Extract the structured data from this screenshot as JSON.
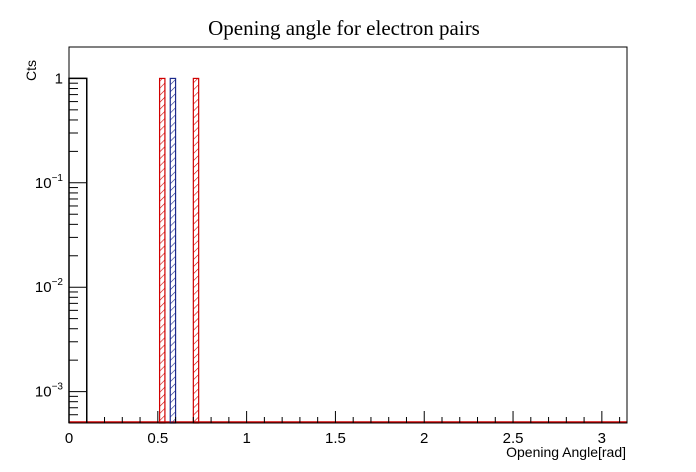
{
  "chart_data": {
    "type": "bar",
    "title": "Opening angle for electron pairs",
    "xlabel": "Opening Angle[rad]",
    "ylabel": "Cts",
    "xlim": [
      0,
      3.14159
    ],
    "ylim": [
      0.0005,
      2
    ],
    "y_scale": "log",
    "grid": false,
    "x_ticks": [
      {
        "value": 0,
        "label": "0"
      },
      {
        "value": 0.5,
        "label": "0.5"
      },
      {
        "value": 1,
        "label": "1"
      },
      {
        "value": 1.5,
        "label": "1.5"
      },
      {
        "value": 2,
        "label": "2"
      },
      {
        "value": 2.5,
        "label": "2.5"
      },
      {
        "value": 3,
        "label": "3"
      }
    ],
    "y_ticks": [
      {
        "value": 1,
        "base": "1",
        "exp": ""
      },
      {
        "value": 0.1,
        "base": "10",
        "exp": "−1"
      },
      {
        "value": 0.01,
        "base": "10",
        "exp": "−2"
      },
      {
        "value": 0.001,
        "base": "10",
        "exp": "−3"
      }
    ],
    "series": [
      {
        "color": "#000000",
        "style": "outline",
        "bars": [
          {
            "x0": 0.0,
            "x1": 0.1,
            "value": 1
          }
        ]
      },
      {
        "color": "#d00000",
        "style": "hatched",
        "bars": [
          {
            "x0": 0.51,
            "x1": 0.54,
            "value": 1
          },
          {
            "x0": 0.7,
            "x1": 0.73,
            "value": 1
          }
        ]
      },
      {
        "color": "#1c2a8c",
        "style": "hatched",
        "bars": [
          {
            "x0": 0.57,
            "x1": 0.6,
            "value": 1
          }
        ]
      }
    ],
    "baseline_color": "#d00000"
  }
}
